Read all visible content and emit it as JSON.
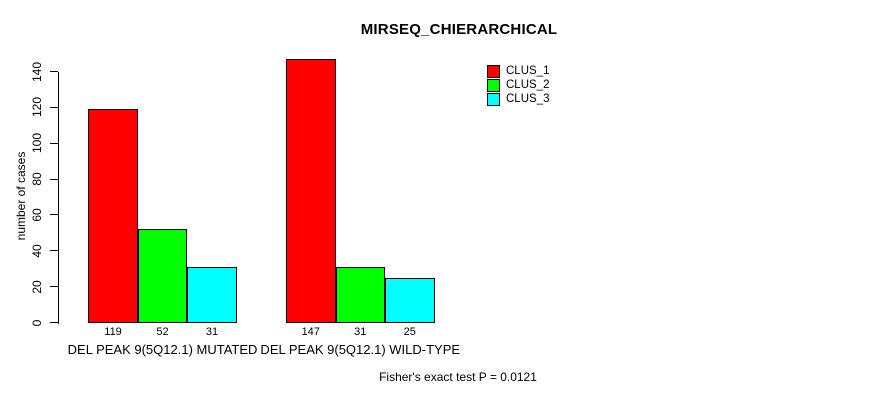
{
  "chart_data": {
    "type": "bar",
    "title": "MIRSEQ_CHIERARCHICAL",
    "ylabel": "number of cases",
    "xlabel": "",
    "ylim": [
      0,
      150
    ],
    "yticks": [
      0,
      20,
      40,
      60,
      80,
      100,
      120,
      140
    ],
    "grid": false,
    "legend_position": "top-right",
    "categories": [
      "DEL PEAK 9(5Q12.1) MUTATED",
      "DEL PEAK 9(5Q12.1) WILD-TYPE"
    ],
    "series": [
      {
        "name": "CLUS_1",
        "color": "#FF0000",
        "values": [
          119,
          147
        ]
      },
      {
        "name": "CLUS_2",
        "color": "#00FF00",
        "values": [
          52,
          31
        ]
      },
      {
        "name": "CLUS_3",
        "color": "#00FFFF",
        "values": [
          31,
          25
        ]
      }
    ],
    "show_bar_values": true,
    "annotation": "Fisher's exact test P = 0.0121",
    "axis_color": "#000000",
    "text_color": "#000000",
    "background": "#FFFFFF"
  }
}
